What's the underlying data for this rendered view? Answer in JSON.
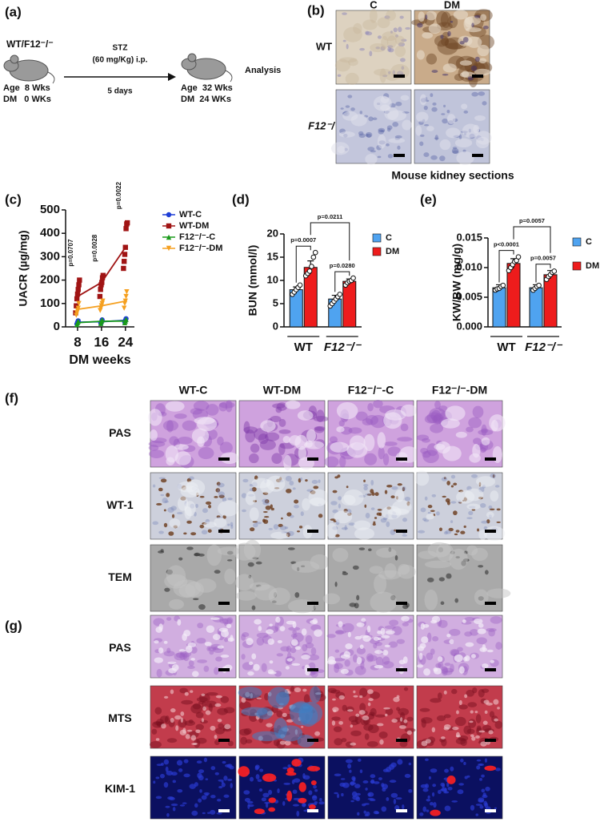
{
  "panel_a": {
    "label": "(a)",
    "strain": "WT/F12⁻/⁻",
    "treatment": "STZ",
    "dose": "(60 mg/Kg) i.p.",
    "duration": "5 days",
    "start": {
      "age": "Age  8 Wks",
      "dm": "DM   0 WKs"
    },
    "end": {
      "age": "Age  32 Wks",
      "dm": "DM  24 WKs"
    },
    "outcome": "Analysis"
  },
  "panel_b": {
    "label": "(b)",
    "columns": [
      "C",
      "DM"
    ],
    "rows": [
      "WT",
      "F12⁻/⁻"
    ],
    "caption": "Mouse kidney sections"
  },
  "chart_data": [
    {
      "type": "line",
      "label": "(c)",
      "x": [
        8,
        16,
        24
      ],
      "xlim": [
        4,
        27
      ],
      "xticks": [
        8,
        16,
        24
      ],
      "xlabel": "DM weeks",
      "ylabel": "UACR (µg/mg)",
      "ylim": [
        0,
        500
      ],
      "yticks": [
        0,
        100,
        200,
        300,
        400,
        500
      ],
      "series": [
        {
          "name": "WT-C",
          "color": "#1f3fd6",
          "marker": "circle",
          "values": [
            20,
            22,
            28
          ],
          "points": [
            [
              12,
              20,
              26
            ],
            [
              15,
              22,
              30
            ],
            [
              20,
              28,
              35
            ]
          ]
        },
        {
          "name": "WT-DM",
          "color": "#a01414",
          "marker": "square",
          "values": [
            130,
            190,
            340
          ],
          "points": [
            [
              60,
              90,
              120,
              140,
              160,
              180,
              200
            ],
            [
              130,
              160,
              180,
              190,
              210,
              220
            ],
            [
              250,
              280,
              310,
              340,
              420,
              440,
              445
            ]
          ]
        },
        {
          "name": "F12⁻/⁻-C",
          "color": "#1a9a1a",
          "marker": "triangle",
          "values": [
            18,
            24,
            25
          ],
          "points": [
            [
              10,
              18,
              24
            ],
            [
              15,
              24,
              30
            ],
            [
              18,
              25,
              32
            ]
          ]
        },
        {
          "name": "F12⁻/⁻-DM",
          "color": "#f5a020",
          "marker": "triangle-down",
          "values": [
            75,
            90,
            110
          ],
          "points": [
            [
              50,
              60,
              70,
              80,
              100
            ],
            [
              70,
              80,
              90,
              100,
              110
            ],
            [
              80,
              100,
              110,
              130,
              150
            ]
          ]
        }
      ],
      "annotations": [
        "p=0.0707",
        "p=0.0028",
        "p=0.0022"
      ]
    },
    {
      "type": "bar",
      "label": "(d)",
      "categories": [
        "WT",
        "F12⁻/⁻"
      ],
      "ylabel": "BUN (mmol/l)",
      "ylim": [
        0,
        20
      ],
      "yticks": [
        0,
        5,
        10,
        15,
        20
      ],
      "series": [
        {
          "name": "C",
          "color": "#4fa3f0",
          "values": [
            8.0,
            6.0
          ],
          "errors": [
            0.6,
            0.8
          ],
          "points": [
            [
              7.0,
              7.5,
              8.0,
              8.5,
              9.0
            ],
            [
              4.5,
              5.0,
              5.5,
              6.0,
              6.5,
              7.0
            ]
          ]
        },
        {
          "name": "DM",
          "color": "#ee1c1c",
          "values": [
            12.8,
            9.8
          ],
          "errors": [
            1.4,
            0.5
          ],
          "points": [
            [
              11.0,
              11.5,
              12.0,
              13.0,
              15.0,
              16.0
            ],
            [
              9.0,
              9.5,
              9.8,
              10.0,
              10.5
            ]
          ]
        }
      ],
      "comparisons": [
        "p=0.0007",
        "p=0.0280",
        "p=0.0211"
      ]
    },
    {
      "type": "bar",
      "label": "(e)",
      "categories": [
        "WT",
        "F12⁻/⁻"
      ],
      "ylabel": "KW/BW (mg/g)",
      "ylim": [
        0,
        0.015
      ],
      "yticks": [
        {
          "value": 0,
          "label": "0.000"
        },
        {
          "value": 0.005,
          "label": "0.005"
        },
        {
          "value": 0.01,
          "label": "0.010"
        },
        {
          "value": 0.015,
          "label": "0.015"
        }
      ],
      "series": [
        {
          "name": "C",
          "color": "#4fa3f0",
          "values": [
            0.0066,
            0.0066
          ],
          "errors": [
            0.0005,
            0.0005
          ],
          "points": [
            [
              0.0062,
              0.0064,
              0.0065,
              0.0068,
              0.007
            ],
            [
              0.0062,
              0.0065,
              0.0068,
              0.007
            ]
          ]
        },
        {
          "name": "DM",
          "color": "#ee1c1c",
          "values": [
            0.0107,
            0.0088
          ],
          "errors": [
            0.0008,
            0.0007
          ],
          "points": [
            [
              0.0095,
              0.01,
              0.0105,
              0.011,
              0.0112,
              0.0118
            ],
            [
              0.008,
              0.0085,
              0.0088,
              0.0092,
              0.0094
            ]
          ]
        }
      ],
      "comparisons": [
        "p<0.0001",
        "p=0.0057",
        "p=0.0057"
      ]
    }
  ],
  "panel_f": {
    "label": "(f)",
    "columns": [
      "WT-C",
      "WT-DM",
      "F12⁻/⁻-C",
      "F12⁻/⁻-DM"
    ],
    "rows": [
      "PAS",
      "WT-1",
      "TEM"
    ]
  },
  "panel_g": {
    "label": "(g)",
    "rows": [
      "PAS",
      "MTS",
      "KIM-1"
    ]
  }
}
